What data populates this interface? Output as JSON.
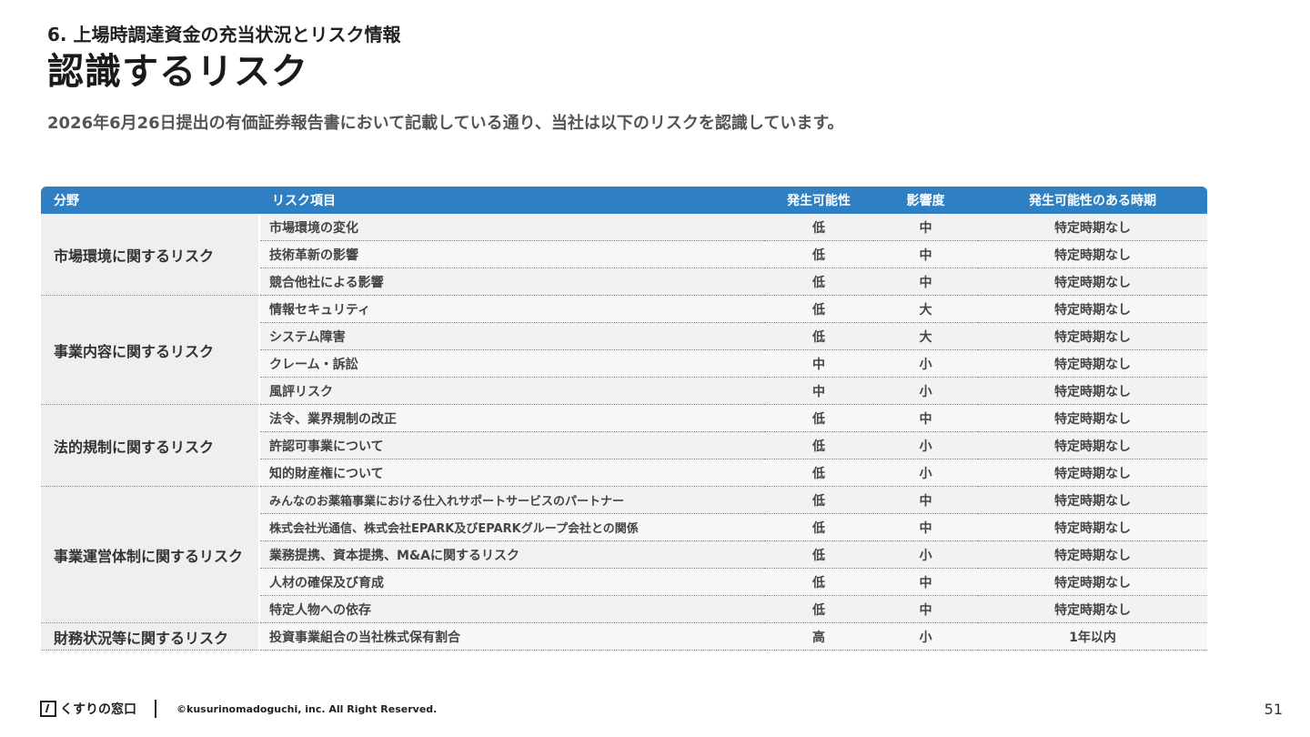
{
  "header": {
    "section": "6. 上場時調達資金の充当状況とリスク情報",
    "title": "認識するリスク",
    "lead": "2026年6月26日提出の有価証券報告書において記載している通り、当社は以下のリスクを認識しています。"
  },
  "table": {
    "columns": [
      "分野",
      "リスク項目",
      "発生可能性",
      "影響度",
      "発生可能性のある時期"
    ],
    "categories": [
      "市場環境に関するリスク",
      "事業内容に関するリスク",
      "法的規制に関するリスク",
      "事業運営体制に関するリスク",
      "財務状況等に関するリスク"
    ],
    "rows": [
      {
        "item": "市場環境の変化",
        "likelihood": "低",
        "impact": "中",
        "timing": "特定時期なし"
      },
      {
        "item": "技術革新の影響",
        "likelihood": "低",
        "impact": "中",
        "timing": "特定時期なし"
      },
      {
        "item": "競合他社による影響",
        "likelihood": "低",
        "impact": "中",
        "timing": "特定時期なし"
      },
      {
        "item": "情報セキュリティ",
        "likelihood": "低",
        "impact": "大",
        "timing": "特定時期なし"
      },
      {
        "item": "システム障害",
        "likelihood": "低",
        "impact": "大",
        "timing": "特定時期なし"
      },
      {
        "item": "クレーム・訴訟",
        "likelihood": "中",
        "impact": "小",
        "timing": "特定時期なし"
      },
      {
        "item": "風評リスク",
        "likelihood": "中",
        "impact": "小",
        "timing": "特定時期なし"
      },
      {
        "item": "法令、業界規制の改正",
        "likelihood": "低",
        "impact": "中",
        "timing": "特定時期なし"
      },
      {
        "item": "許認可事業について",
        "likelihood": "低",
        "impact": "小",
        "timing": "特定時期なし"
      },
      {
        "item": "知的財産権について",
        "likelihood": "低",
        "impact": "小",
        "timing": "特定時期なし"
      },
      {
        "item": "みんなのお薬箱事業における仕入れサポートサービスのパートナー",
        "likelihood": "低",
        "impact": "中",
        "timing": "特定時期なし"
      },
      {
        "item": "株式会社光通信、株式会社EPARK及びEPARKグループ会社との関係",
        "likelihood": "低",
        "impact": "中",
        "timing": "特定時期なし"
      },
      {
        "item": "業務提携、資本提携、M&Aに関するリスク",
        "likelihood": "低",
        "impact": "小",
        "timing": "特定時期なし"
      },
      {
        "item": "人材の確保及び育成",
        "likelihood": "低",
        "impact": "中",
        "timing": "特定時期なし"
      },
      {
        "item": "特定人物への依存",
        "likelihood": "低",
        "impact": "中",
        "timing": "特定時期なし"
      },
      {
        "item": "投資事業組合の当社株式保有割合",
        "likelihood": "高",
        "impact": "小",
        "timing": "1年以内"
      }
    ]
  },
  "footer": {
    "logo": "くすりの窓口",
    "copyright": "©kusurinomadoguchi, inc. All Right Reserved.",
    "page": "51"
  }
}
